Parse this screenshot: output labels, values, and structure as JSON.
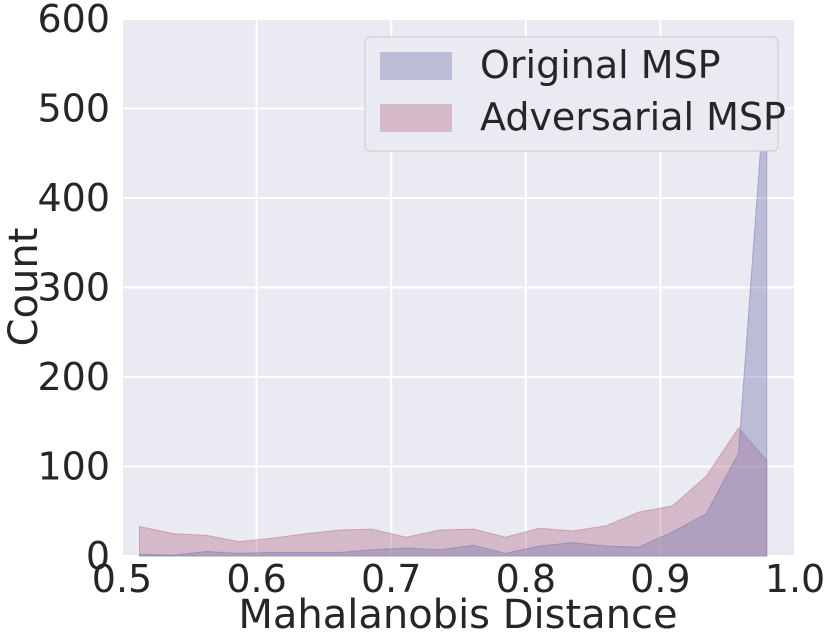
{
  "chart_data": {
    "type": "area",
    "xlabel": "Mahalanobis Distance",
    "ylabel": "Count",
    "xlim": [
      0.5,
      1.0
    ],
    "ylim": [
      0,
      600
    ],
    "xticks": [
      "0.5",
      "0.6",
      "0.7",
      "0.8",
      "0.9",
      "1.0"
    ],
    "yticks": [
      "0",
      "100",
      "200",
      "300",
      "400",
      "500",
      "600"
    ],
    "grid": true,
    "legend_position": "top-right",
    "background": "#EAEAF2",
    "series": [
      {
        "name": "Adversarial MSP",
        "color": "#b47489",
        "x": [
          0.513,
          0.538,
          0.563,
          0.587,
          0.612,
          0.637,
          0.662,
          0.686,
          0.711,
          0.736,
          0.761,
          0.785,
          0.81,
          0.835,
          0.86,
          0.884,
          0.909,
          0.934,
          0.958,
          0.979
        ],
        "values": [
          33,
          25,
          23,
          16,
          20,
          25,
          29,
          30,
          21,
          29,
          30,
          21,
          31,
          28,
          34,
          49,
          56,
          89,
          143,
          107
        ]
      },
      {
        "name": "Original MSP",
        "color": "#7a78b0",
        "x": [
          0.513,
          0.538,
          0.563,
          0.587,
          0.612,
          0.637,
          0.662,
          0.686,
          0.711,
          0.736,
          0.761,
          0.785,
          0.81,
          0.835,
          0.86,
          0.884,
          0.909,
          0.934,
          0.958,
          0.979
        ],
        "values": [
          2,
          1,
          5,
          3,
          4,
          4,
          4,
          7,
          9,
          7,
          12,
          3,
          11,
          15,
          11,
          10,
          27,
          47,
          115,
          550
        ]
      }
    ]
  }
}
